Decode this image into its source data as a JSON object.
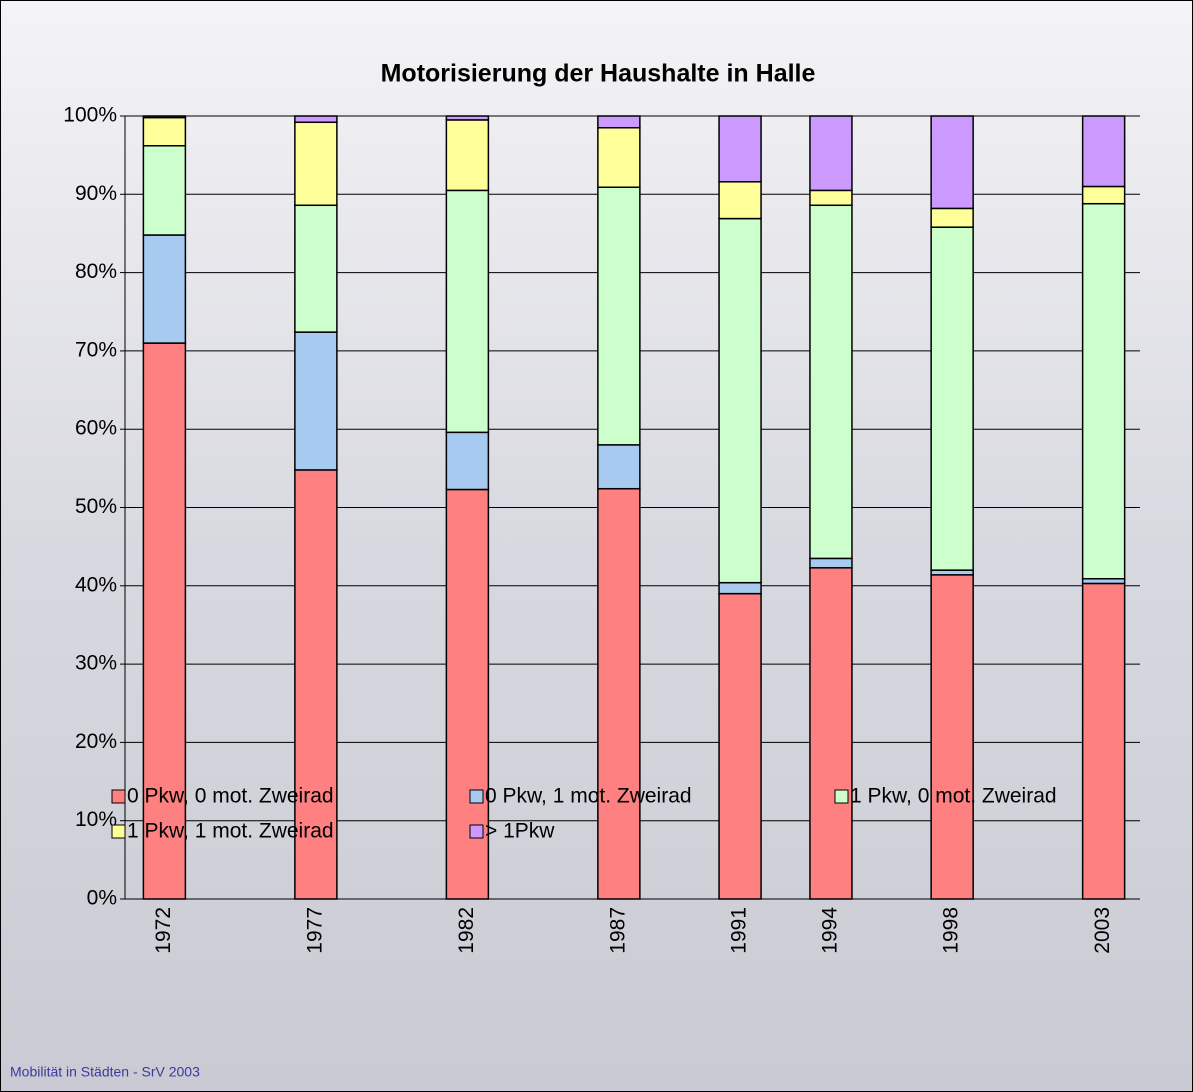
{
  "chart_data": {
    "type": "stacked_bar",
    "title": "Motorisierung der Haushalte in Halle",
    "x": [
      1972,
      1977,
      1982,
      1987,
      1991,
      1994,
      1998,
      2003
    ],
    "xlim": [
      1970.7,
      2004.2
    ],
    "ylim": [
      0,
      100
    ],
    "yticks": [
      {
        "value": 0,
        "label": "0%"
      },
      {
        "value": 10,
        "label": "10%"
      },
      {
        "value": 20,
        "label": "20%"
      },
      {
        "value": 30,
        "label": "30%"
      },
      {
        "value": 40,
        "label": "40%"
      },
      {
        "value": 50,
        "label": "50%"
      },
      {
        "value": 60,
        "label": "60%"
      },
      {
        "value": 70,
        "label": "70%"
      },
      {
        "value": 80,
        "label": "80%"
      },
      {
        "value": 90,
        "label": "90%"
      },
      {
        "value": 100,
        "label": "100%"
      }
    ],
    "grid": true,
    "series": [
      {
        "name": "0 Pkw, 0 mot. Zweirad",
        "color": "#ff8080",
        "values": [
          71.0,
          54.8,
          52.3,
          52.4,
          39.0,
          42.3,
          41.4,
          40.3
        ]
      },
      {
        "name": "0 Pkw, 1 mot. Zweirad",
        "color": "#a6caf0",
        "values": [
          13.8,
          17.6,
          7.3,
          5.6,
          1.4,
          1.2,
          0.6,
          0.6
        ]
      },
      {
        "name": "1 Pkw, 0 mot. Zweirad",
        "color": "#ccffcc",
        "values": [
          11.4,
          16.2,
          30.9,
          32.9,
          46.5,
          45.1,
          43.8,
          47.9
        ]
      },
      {
        "name": "1 Pkw, 1 mot. Zweirad",
        "color": "#ffff99",
        "values": [
          3.6,
          10.6,
          9.0,
          7.6,
          4.7,
          1.9,
          2.4,
          2.2
        ]
      },
      {
        "name": "> 1Pkw",
        "color": "#cc99ff",
        "values": [
          0.2,
          0.8,
          0.5,
          1.5,
          8.4,
          9.5,
          11.8,
          9.0
        ]
      }
    ],
    "footer": "Mobilität in Städten - SrV 2003"
  }
}
